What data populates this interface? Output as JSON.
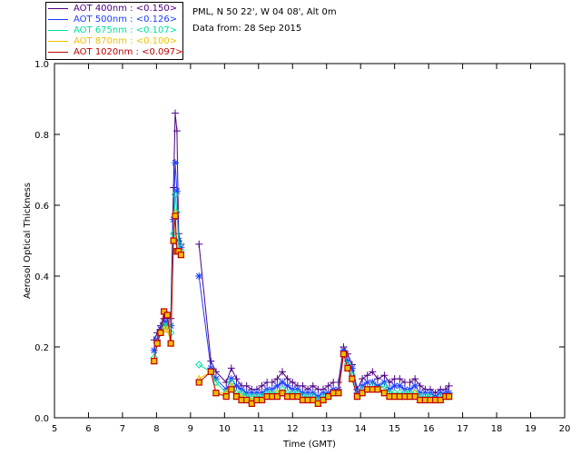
{
  "info": {
    "site": "PML, N 50 22', W 04 08', Alt 0m",
    "data_date": "Data from: 28 Sep 2015"
  },
  "legend": [
    {
      "label": "AOT  400nm : <0.150>",
      "color": "#4b0082"
    },
    {
      "label": "AOT  500nm : <0.126>",
      "color": "#1e3cff"
    },
    {
      "label": "AOT  675nm : <0.107>",
      "color": "#00e0a0"
    },
    {
      "label": "AOT  870nm : <0.100>",
      "color": "#f0c000"
    },
    {
      "label": "AOT 1020nm : <0.097>",
      "color": "#c00000"
    }
  ],
  "chart_data": {
    "type": "line",
    "xlabel": "Time (GMT)",
    "ylabel": "Aerosol Optical Thickness",
    "xlim": [
      5,
      20
    ],
    "ylim": [
      0.0,
      1.0
    ],
    "xticks": [
      5,
      6,
      7,
      8,
      9,
      10,
      11,
      12,
      13,
      14,
      15,
      16,
      17,
      18,
      19,
      20
    ],
    "yticks": [
      0.0,
      0.2,
      0.4,
      0.6,
      0.8,
      1.0
    ],
    "ytick_labels": [
      "0.0",
      "0.2",
      "0.4",
      "0.6",
      "0.8",
      "1.0"
    ],
    "grid": false,
    "legend_position": "top-left",
    "x": [
      7.93,
      8.02,
      8.12,
      8.22,
      8.32,
      8.42,
      8.5,
      8.55,
      8.6,
      8.65,
      8.72,
      9.25,
      9.6,
      9.75,
      10.05,
      10.2,
      10.35,
      10.5,
      10.65,
      10.8,
      10.95,
      11.1,
      11.25,
      11.4,
      11.55,
      11.7,
      11.85,
      12.0,
      12.15,
      12.3,
      12.45,
      12.6,
      12.75,
      12.9,
      13.05,
      13.2,
      13.35,
      13.5,
      13.62,
      13.75,
      13.9,
      14.05,
      14.2,
      14.35,
      14.5,
      14.7,
      14.85,
      15.0,
      15.15,
      15.3,
      15.45,
      15.6,
      15.75,
      15.9,
      16.05,
      16.2,
      16.35,
      16.5,
      16.6
    ],
    "series": [
      {
        "name": "AOT  400nm : <0.150>",
        "marker": "plus",
        "values": [
          0.22,
          0.24,
          0.26,
          0.28,
          0.29,
          0.28,
          0.65,
          0.86,
          0.81,
          0.52,
          0.49,
          0.49,
          0.16,
          0.13,
          0.1,
          0.14,
          0.11,
          0.09,
          0.09,
          0.08,
          0.08,
          0.09,
          0.1,
          0.1,
          0.11,
          0.13,
          0.11,
          0.1,
          0.09,
          0.09,
          0.08,
          0.09,
          0.08,
          0.08,
          0.09,
          0.1,
          0.1,
          0.2,
          0.18,
          0.15,
          0.08,
          0.11,
          0.12,
          0.13,
          0.11,
          0.12,
          0.1,
          0.11,
          0.11,
          0.1,
          0.1,
          0.11,
          0.09,
          0.08,
          0.08,
          0.07,
          0.08,
          0.08,
          0.09
        ]
      },
      {
        "name": "AOT  500nm : <0.126>",
        "marker": "star",
        "values": [
          0.19,
          0.22,
          0.25,
          0.27,
          0.27,
          0.26,
          0.56,
          0.72,
          0.64,
          0.5,
          0.48,
          0.4,
          0.14,
          0.11,
          0.08,
          0.11,
          0.09,
          0.08,
          0.07,
          0.07,
          0.07,
          0.07,
          0.08,
          0.08,
          0.09,
          0.1,
          0.09,
          0.08,
          0.08,
          0.07,
          0.07,
          0.07,
          0.06,
          0.07,
          0.07,
          0.08,
          0.08,
          0.19,
          0.16,
          0.14,
          0.07,
          0.09,
          0.1,
          0.1,
          0.09,
          0.1,
          0.08,
          0.09,
          0.09,
          0.08,
          0.08,
          0.09,
          0.07,
          0.07,
          0.07,
          0.06,
          0.07,
          0.07,
          0.07
        ]
      },
      {
        "name": "AOT  675nm : <0.107>",
        "marker": "diamond",
        "values": [
          0.17,
          0.21,
          0.24,
          0.26,
          0.26,
          0.24,
          0.52,
          0.63,
          0.58,
          0.49,
          0.47,
          0.15,
          0.13,
          0.1,
          0.07,
          0.1,
          0.07,
          0.07,
          0.06,
          0.06,
          0.06,
          0.06,
          0.07,
          0.07,
          0.07,
          0.08,
          0.07,
          0.07,
          0.07,
          0.06,
          0.06,
          0.06,
          0.05,
          0.06,
          0.06,
          0.07,
          0.07,
          0.18,
          0.15,
          0.12,
          0.06,
          0.08,
          0.08,
          0.09,
          0.08,
          0.09,
          0.07,
          0.07,
          0.07,
          0.07,
          0.07,
          0.07,
          0.06,
          0.06,
          0.06,
          0.05,
          0.06,
          0.06,
          0.06
        ]
      },
      {
        "name": "AOT  870nm : <0.100>",
        "marker": "triangle",
        "values": [
          0.16,
          0.21,
          0.24,
          0.25,
          0.25,
          0.21,
          0.5,
          0.58,
          0.47,
          0.47,
          0.46,
          0.11,
          0.13,
          0.07,
          0.07,
          0.09,
          0.06,
          0.06,
          0.05,
          0.05,
          0.05,
          0.05,
          0.06,
          0.06,
          0.07,
          0.07,
          0.06,
          0.06,
          0.06,
          0.05,
          0.05,
          0.05,
          0.04,
          0.05,
          0.06,
          0.07,
          0.07,
          0.18,
          0.14,
          0.11,
          0.06,
          0.07,
          0.08,
          0.08,
          0.08,
          0.07,
          0.06,
          0.06,
          0.06,
          0.06,
          0.06,
          0.07,
          0.05,
          0.05,
          0.05,
          0.05,
          0.05,
          0.06,
          0.06
        ]
      },
      {
        "name": "AOT 1020nm : <0.097>",
        "marker": "square",
        "values": [
          0.16,
          0.21,
          0.24,
          0.3,
          0.29,
          0.21,
          0.5,
          0.57,
          0.47,
          0.47,
          0.46,
          0.1,
          0.13,
          0.07,
          0.06,
          0.08,
          0.06,
          0.05,
          0.05,
          0.04,
          0.05,
          0.05,
          0.06,
          0.06,
          0.06,
          0.07,
          0.06,
          0.06,
          0.06,
          0.05,
          0.05,
          0.05,
          0.04,
          0.05,
          0.06,
          0.07,
          0.07,
          0.18,
          0.14,
          0.11,
          0.06,
          0.07,
          0.08,
          0.08,
          0.08,
          0.07,
          0.06,
          0.06,
          0.06,
          0.06,
          0.06,
          0.06,
          0.05,
          0.05,
          0.05,
          0.05,
          0.05,
          0.06,
          0.06
        ]
      }
    ]
  }
}
